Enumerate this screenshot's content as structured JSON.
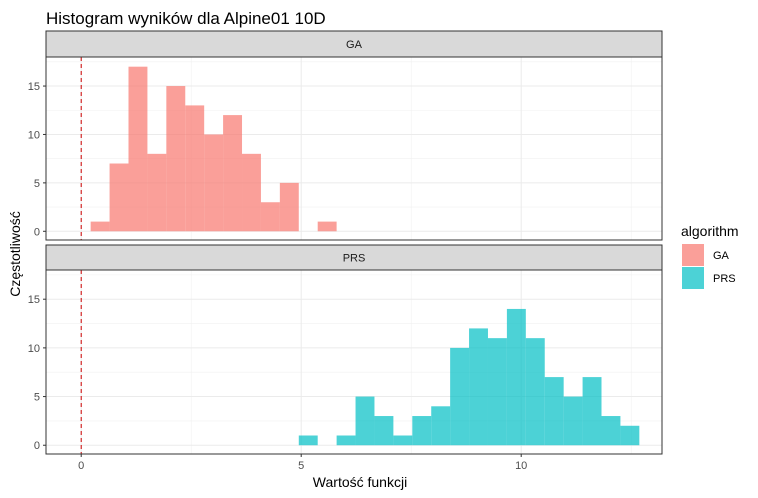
{
  "chart_data": {
    "type": "bar",
    "title": "Histogram wyników dla Alpine01 10D",
    "xlabel": "Wartość funkcji",
    "ylabel": "Częstotliwość",
    "xlim": [
      -0.8,
      13.2
    ],
    "ylim": [
      -0.9,
      18.0
    ],
    "x_ticks": [
      0,
      5,
      10
    ],
    "y_ticks": [
      0,
      5,
      10,
      15
    ],
    "bin_width": 0.43,
    "reference_line": {
      "x": 0,
      "style": "dashed",
      "color": "#cc0000"
    },
    "grid": true,
    "legend": {
      "title": "algorithm",
      "position": "right"
    },
    "panels": [
      {
        "name": "GA",
        "color": "#f8766d",
        "bins": [
          {
            "x": 0.43,
            "count": 1
          },
          {
            "x": 0.86,
            "count": 7
          },
          {
            "x": 1.29,
            "count": 17
          },
          {
            "x": 1.72,
            "count": 8
          },
          {
            "x": 2.15,
            "count": 15
          },
          {
            "x": 2.58,
            "count": 13
          },
          {
            "x": 3.01,
            "count": 10
          },
          {
            "x": 3.44,
            "count": 12
          },
          {
            "x": 3.87,
            "count": 8
          },
          {
            "x": 4.3,
            "count": 3
          },
          {
            "x": 4.73,
            "count": 5
          },
          {
            "x": 5.59,
            "count": 1
          }
        ]
      },
      {
        "name": "PRS",
        "color": "#00bfc4",
        "bins": [
          {
            "x": 5.16,
            "count": 1
          },
          {
            "x": 6.02,
            "count": 1
          },
          {
            "x": 6.45,
            "count": 5
          },
          {
            "x": 6.88,
            "count": 3
          },
          {
            "x": 7.31,
            "count": 1
          },
          {
            "x": 7.74,
            "count": 3
          },
          {
            "x": 8.17,
            "count": 4
          },
          {
            "x": 8.6,
            "count": 10
          },
          {
            "x": 9.03,
            "count": 12
          },
          {
            "x": 9.46,
            "count": 11
          },
          {
            "x": 9.89,
            "count": 14
          },
          {
            "x": 10.32,
            "count": 11
          },
          {
            "x": 10.75,
            "count": 7
          },
          {
            "x": 11.18,
            "count": 5
          },
          {
            "x": 11.61,
            "count": 7
          },
          {
            "x": 12.04,
            "count": 3
          },
          {
            "x": 12.47,
            "count": 2
          }
        ]
      }
    ]
  }
}
